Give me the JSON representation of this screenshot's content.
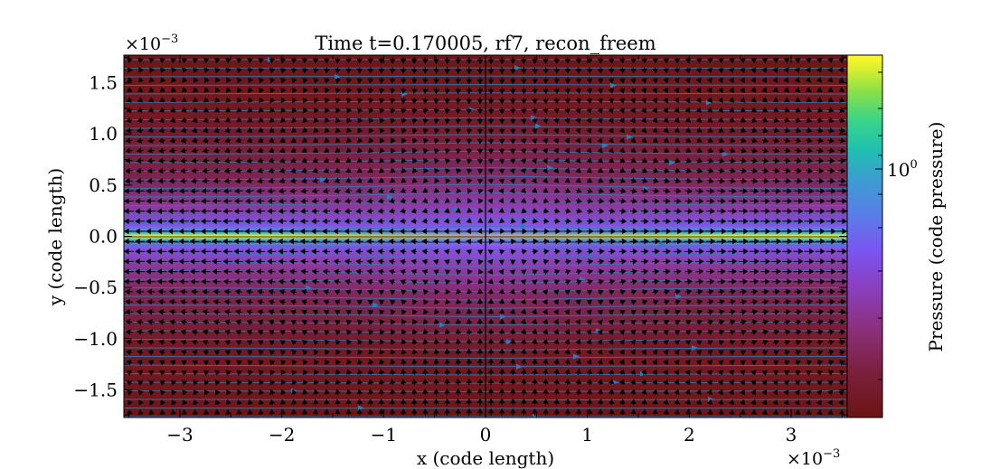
{
  "chart_data": {
    "type": "heatmap",
    "title": "Time t=0.170005, rf7, recon_freem",
    "xlabel": "x  (code length)",
    "ylabel": "y  (code length)",
    "x_multiplier": "×10",
    "x_multiplier_exp": "−3",
    "y_multiplier": "×10",
    "y_multiplier_exp": "−3",
    "xlim": [
      -3.55,
      3.55
    ],
    "ylim": [
      -1.77,
      1.77
    ],
    "x_ticks": [
      -3,
      -2,
      -1,
      0,
      1,
      2,
      3
    ],
    "x_tick_labels": [
      "−3",
      "−2",
      "−1",
      "0",
      "1",
      "2",
      "3"
    ],
    "y_ticks": [
      -1.5,
      -1.0,
      -0.5,
      0.0,
      0.5,
      1.0,
      1.5
    ],
    "y_tick_labels": [
      "−1.5",
      "−1.0",
      "−0.5",
      "0.0",
      "0.5",
      "1.0",
      "1.5"
    ],
    "colorbar": {
      "label": "Pressure  (code pressure)",
      "scale": "log",
      "tick_label_base": "10",
      "tick_label_exp": "0",
      "tick_value": 1.0,
      "colormap": "viridis-plasma-red",
      "colors": [
        "#6b1414",
        "#7a1f3a",
        "#8b2f7a",
        "#8a3fc0",
        "#7a55f0",
        "#5a7ee8",
        "#3a9ed0",
        "#20c0b0",
        "#3ad48a",
        "#8ae048",
        "#d8ee30",
        "#fef828"
      ]
    },
    "overlays": {
      "quiver": "black arrows (velocity field)",
      "streamlines": "blue lines (magnetic field)",
      "current_sheet_y": 0.0,
      "vertical_marker_x": 0.0
    }
  }
}
